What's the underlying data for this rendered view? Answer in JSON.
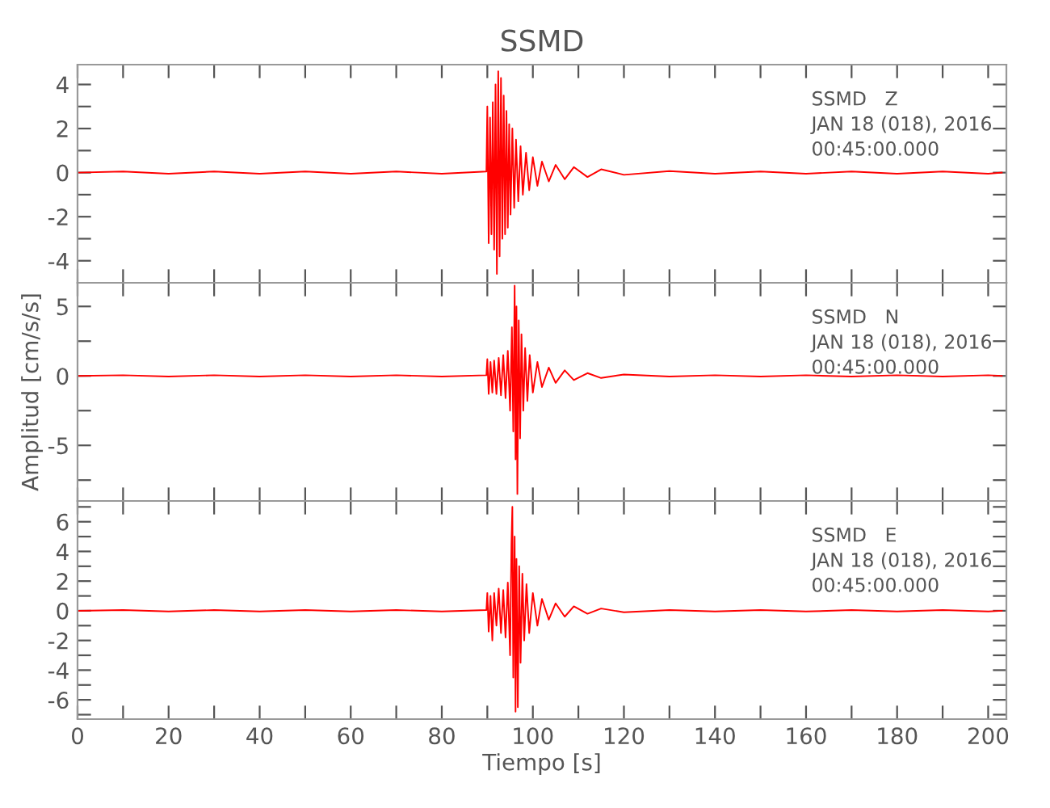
{
  "chart_data": [
    {
      "type": "line",
      "title": "SSMD",
      "tick_labels": "y",
      "annotations": [
        "SSMD   Z",
        "JAN 18 (018), 2016",
        "00:45:00.000"
      ],
      "xlim": [
        0,
        204
      ],
      "xticks": [
        0,
        {
          "value": 10,
          "label": null
        },
        20,
        {
          "value": 30,
          "label": null
        },
        40,
        {
          "value": 50,
          "label": null
        },
        60,
        {
          "value": 70,
          "label": null
        },
        80,
        {
          "value": 90,
          "label": null
        },
        100,
        {
          "value": 110,
          "label": null
        },
        120,
        {
          "value": 130,
          "label": null
        },
        140,
        {
          "value": 150,
          "label": null
        },
        160,
        {
          "value": 170,
          "label": null
        },
        180,
        {
          "value": 190,
          "label": null
        },
        200
      ],
      "ylim": [
        -5,
        4.9
      ],
      "yticks": [
        -4,
        {
          "value": -3,
          "label": null
        },
        -2,
        {
          "value": -1,
          "label": null
        },
        0,
        {
          "value": 1,
          "label": null
        },
        2,
        {
          "value": 3,
          "label": null
        },
        4
      ],
      "grid": false,
      "legend": false,
      "series": [
        {
          "color": "#ff0000",
          "x": [
            0,
            10,
            20,
            30,
            40,
            50,
            60,
            70,
            80,
            89.8,
            90,
            90.3,
            90.6,
            90.9,
            91.2,
            91.5,
            91.8,
            92.1,
            92.4,
            92.7,
            93.0,
            93.3,
            93.6,
            93.9,
            94.2,
            94.5,
            94.8,
            95.1,
            95.5,
            95.9,
            96.3,
            96.8,
            97.3,
            97.8,
            98.5,
            99.2,
            100,
            101,
            102,
            103.5,
            105,
            107,
            109,
            112,
            115,
            120,
            130,
            140,
            150,
            160,
            170,
            180,
            190,
            200,
            203
          ],
          "values": [
            0,
            0.05,
            -0.05,
            0.05,
            -0.05,
            0.05,
            -0.05,
            0.05,
            -0.05,
            0.05,
            3.0,
            -3.2,
            2.5,
            -2.8,
            3.2,
            -3.5,
            4.0,
            -4.6,
            4.6,
            -3.8,
            4.3,
            -3.0,
            3.5,
            -2.8,
            2.8,
            -2.5,
            2.2,
            -1.9,
            2.0,
            -1.6,
            1.5,
            -1.3,
            1.2,
            -1.0,
            0.9,
            -0.8,
            0.7,
            -0.6,
            0.5,
            -0.4,
            0.35,
            -0.3,
            0.25,
            -0.2,
            0.15,
            -0.1,
            0.07,
            -0.05,
            0.05,
            -0.05,
            0.05,
            -0.05,
            0.05,
            -0.05,
            0
          ]
        }
      ]
    },
    {
      "type": "line",
      "ylabel": "Amplitud [cm/s/s]",
      "tick_labels": "y",
      "annotations": [
        "SSMD   N",
        "JAN 18 (018), 2016",
        "00:45:00.000"
      ],
      "xlim": [
        0,
        204
      ],
      "xticks": [
        0,
        {
          "value": 10,
          "label": null
        },
        20,
        {
          "value": 30,
          "label": null
        },
        40,
        {
          "value": 50,
          "label": null
        },
        60,
        {
          "value": 70,
          "label": null
        },
        80,
        {
          "value": 90,
          "label": null
        },
        100,
        {
          "value": 110,
          "label": null
        },
        120,
        {
          "value": 130,
          "label": null
        },
        140,
        {
          "value": 150,
          "label": null
        },
        160,
        {
          "value": 170,
          "label": null
        },
        180,
        {
          "value": 190,
          "label": null
        },
        200
      ],
      "ylim": [
        -9,
        6.7
      ],
      "yticks": [
        {
          "value": -7.5,
          "label": null
        },
        -5,
        {
          "value": -2.5,
          "label": null
        },
        0,
        {
          "value": 2.5,
          "label": null
        },
        5
      ],
      "grid": false,
      "legend": false,
      "series": [
        {
          "color": "#ff0000",
          "x": [
            0,
            10,
            20,
            30,
            40,
            50,
            60,
            70,
            80,
            89.8,
            90,
            90.3,
            90.7,
            91.1,
            91.5,
            92,
            92.5,
            93,
            93.5,
            94,
            94.5,
            95,
            95.4,
            95.7,
            96,
            96.2,
            96.4,
            96.6,
            96.9,
            97.2,
            97.5,
            97.9,
            98.3,
            98.8,
            99.3,
            100,
            101,
            102,
            103.5,
            105,
            107,
            109,
            112,
            115,
            120,
            130,
            140,
            150,
            160,
            170,
            180,
            190,
            200,
            203
          ],
          "values": [
            0,
            0.05,
            -0.05,
            0.05,
            -0.05,
            0.05,
            -0.05,
            0.05,
            -0.05,
            0.05,
            1.2,
            -1.3,
            1.0,
            -1.2,
            1.1,
            -1.3,
            1.3,
            -1.4,
            1.5,
            -1.6,
            1.8,
            -2.5,
            3.5,
            -4.0,
            6.5,
            -6.0,
            5.0,
            -8.5,
            4.0,
            -4.5,
            3.0,
            -2.5,
            2.0,
            -1.8,
            1.5,
            -1.2,
            1.0,
            -0.8,
            0.6,
            -0.5,
            0.4,
            -0.3,
            0.2,
            -0.15,
            0.1,
            -0.05,
            0.05,
            -0.05,
            0.05,
            -0.05,
            0.05,
            -0.05,
            0.05,
            0
          ]
        }
      ]
    },
    {
      "type": "line",
      "xlabel": "Tiempo [s]",
      "annotations": [
        "SSMD   E",
        "JAN 18 (018), 2016",
        "00:45:00.000"
      ],
      "xlim": [
        0,
        204
      ],
      "xticks": [
        0,
        {
          "value": 10,
          "label": null
        },
        20,
        {
          "value": 30,
          "label": null
        },
        40,
        {
          "value": 50,
          "label": null
        },
        60,
        {
          "value": 70,
          "label": null
        },
        80,
        {
          "value": 90,
          "label": null
        },
        100,
        {
          "value": 110,
          "label": null
        },
        120,
        {
          "value": 130,
          "label": null
        },
        140,
        {
          "value": 150,
          "label": null
        },
        160,
        {
          "value": 170,
          "label": null
        },
        180,
        {
          "value": 190,
          "label": null
        },
        200
      ],
      "ylim": [
        -7.3,
        7.4
      ],
      "yticks": [
        {
          "value": -7,
          "label": null
        },
        -6,
        {
          "value": -5,
          "label": null
        },
        -4,
        {
          "value": -3,
          "label": null
        },
        -2,
        {
          "value": -1,
          "label": null
        },
        0,
        {
          "value": 1,
          "label": null
        },
        2,
        {
          "value": 3,
          "label": null
        },
        4,
        {
          "value": 5,
          "label": null
        },
        6,
        {
          "value": 7,
          "label": null
        }
      ],
      "grid": false,
      "legend": false,
      "series": [
        {
          "color": "#ff0000",
          "x": [
            0,
            10,
            20,
            30,
            40,
            50,
            60,
            70,
            80,
            89.8,
            90,
            90.3,
            90.7,
            91.1,
            91.5,
            92,
            92.5,
            93,
            93.5,
            94,
            94.5,
            95,
            95.3,
            95.5,
            95.7,
            96,
            96.2,
            96.4,
            96.7,
            97,
            97.3,
            97.7,
            98.1,
            98.6,
            99.2,
            100,
            101,
            102,
            103.5,
            105,
            107,
            109,
            112,
            115,
            120,
            130,
            140,
            150,
            160,
            170,
            180,
            190,
            200,
            203
          ],
          "values": [
            0,
            0.05,
            -0.05,
            0.05,
            -0.05,
            0.05,
            -0.05,
            0.05,
            -0.05,
            0.05,
            1.2,
            -1.4,
            1.0,
            -2.0,
            1.2,
            -1.0,
            1.5,
            -1.5,
            1.4,
            -1.8,
            1.9,
            -3.0,
            4.5,
            7.0,
            -4.5,
            5.0,
            -6.8,
            3.5,
            -6.5,
            3.0,
            -3.5,
            2.5,
            -2.0,
            1.8,
            -1.5,
            1.2,
            -1.0,
            0.8,
            -0.6,
            0.5,
            -0.4,
            0.3,
            -0.2,
            0.15,
            -0.1,
            0.05,
            -0.05,
            0.05,
            -0.05,
            0.05,
            -0.05,
            0.05,
            -0.05,
            0
          ]
        }
      ]
    }
  ]
}
